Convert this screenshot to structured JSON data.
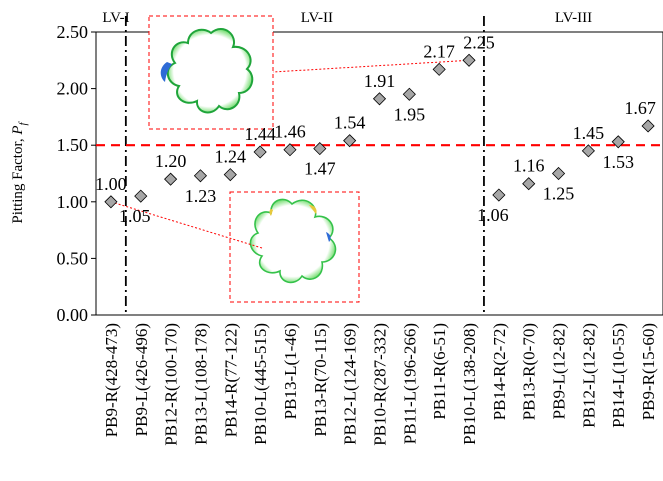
{
  "chart_data": {
    "type": "scatter",
    "ylabel": "Pitting Factor, ",
    "ylabel_symbol": "P",
    "ylabel_sub": "f",
    "ylim": [
      0,
      2.5
    ],
    "yticks": [
      "0.00",
      "0.50",
      "1.00",
      "1.50",
      "2.00",
      "2.50"
    ],
    "ytick_values": [
      0,
      0.5,
      1.0,
      1.5,
      2.0,
      2.5
    ],
    "grid": "none",
    "categories": [
      "PB9-R(428-473)",
      "PB9-L(426-496)",
      "PB12-R(100-170)",
      "PB13-L(108-178)",
      "PB14-R(77-122)",
      "PB10-L(445-515)",
      "PB13-L(1-46)",
      "PB13-R(70-115)",
      "PB12-L(124-169)",
      "PB10-R(287-332)",
      "PB11-L(196-266)",
      "PB11-R(6-51)",
      "PB10-L(138-208)",
      "PB14-R(2-72)",
      "PB13-R(0-70)",
      "PB9-L(12-82)",
      "PB12-L(12-82)",
      "PB14-L(10-55)",
      "PB9-R(15-60)"
    ],
    "values": [
      1.0,
      1.05,
      1.2,
      1.23,
      1.24,
      1.44,
      1.46,
      1.47,
      1.54,
      1.91,
      1.95,
      2.17,
      2.25,
      1.06,
      1.16,
      1.25,
      1.45,
      1.53,
      1.67
    ],
    "value_labels": [
      "1.00",
      "1.05",
      "1.20",
      "1.23",
      "1.24",
      "1.44",
      "1.46",
      "1.47",
      "1.54",
      "1.91",
      "1.95",
      "2.17",
      "2.25",
      "1.06",
      "1.16",
      "1.25",
      "1.45",
      "1.53",
      "1.67"
    ],
    "marker_color": "#a6a6a6",
    "threshold": {
      "value": 1.5,
      "color": "#ff0000"
    },
    "regions": [
      {
        "label": "LV-I",
        "boundary_after_index": null
      },
      {
        "label": "LV-II",
        "boundary_after_index": 0
      },
      {
        "label": "LV-III",
        "boundary_after_index": 12
      }
    ],
    "inset_color": "#ff0000"
  }
}
